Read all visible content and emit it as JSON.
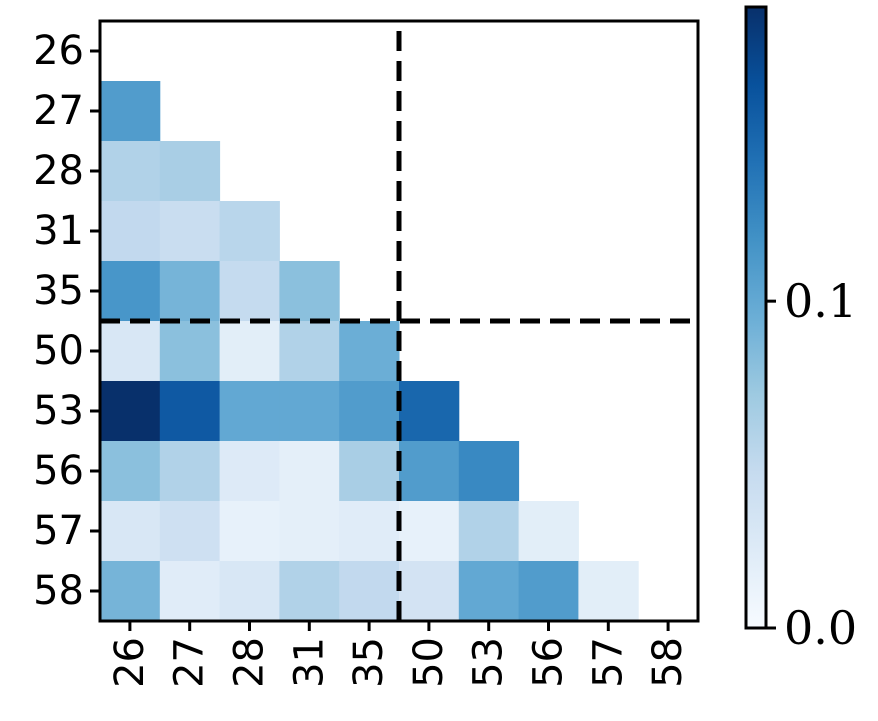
{
  "chart_data": {
    "type": "heatmap",
    "title": "",
    "xlabel": "",
    "ylabel": "",
    "categories": [
      "26",
      "27",
      "28",
      "31",
      "35",
      "50",
      "53",
      "56",
      "57",
      "58"
    ],
    "matrix": [
      [
        null,
        null,
        null,
        null,
        null,
        null,
        null,
        null,
        null,
        null
      ],
      [
        0.11,
        null,
        null,
        null,
        null,
        null,
        null,
        null,
        null,
        null
      ],
      [
        0.06,
        0.065,
        null,
        null,
        null,
        null,
        null,
        null,
        null,
        null
      ],
      [
        0.05,
        0.045,
        0.055,
        null,
        null,
        null,
        null,
        null,
        null,
        null
      ],
      [
        0.115,
        0.09,
        0.048,
        0.08,
        null,
        null,
        null,
        null,
        null,
        null
      ],
      [
        0.03,
        0.08,
        0.02,
        0.06,
        0.095,
        null,
        null,
        null,
        null,
        null
      ],
      [
        0.19,
        0.16,
        0.1,
        0.1,
        0.11,
        0.15,
        null,
        null,
        null,
        null
      ],
      [
        0.08,
        0.06,
        0.025,
        0.018,
        0.065,
        0.11,
        0.125,
        null,
        null,
        null
      ],
      [
        0.03,
        0.04,
        0.015,
        0.018,
        0.022,
        0.015,
        0.06,
        0.02,
        null,
        null
      ],
      [
        0.09,
        0.022,
        0.03,
        0.06,
        0.05,
        0.035,
        0.1,
        0.11,
        0.02,
        null
      ]
    ],
    "divider_after_index": 4,
    "colorbar": {
      "min": 0.0,
      "max": 0.19,
      "ticks": [
        {
          "value": 0.0,
          "label": "0.0"
        },
        {
          "value": 0.1,
          "label": "0.1"
        }
      ],
      "colormap": [
        "#f7fbff",
        "#deebf7",
        "#c6dbef",
        "#9ecae1",
        "#6baed6",
        "#4292c6",
        "#2171b5",
        "#08519c",
        "#08306b"
      ]
    },
    "grid": false
  }
}
